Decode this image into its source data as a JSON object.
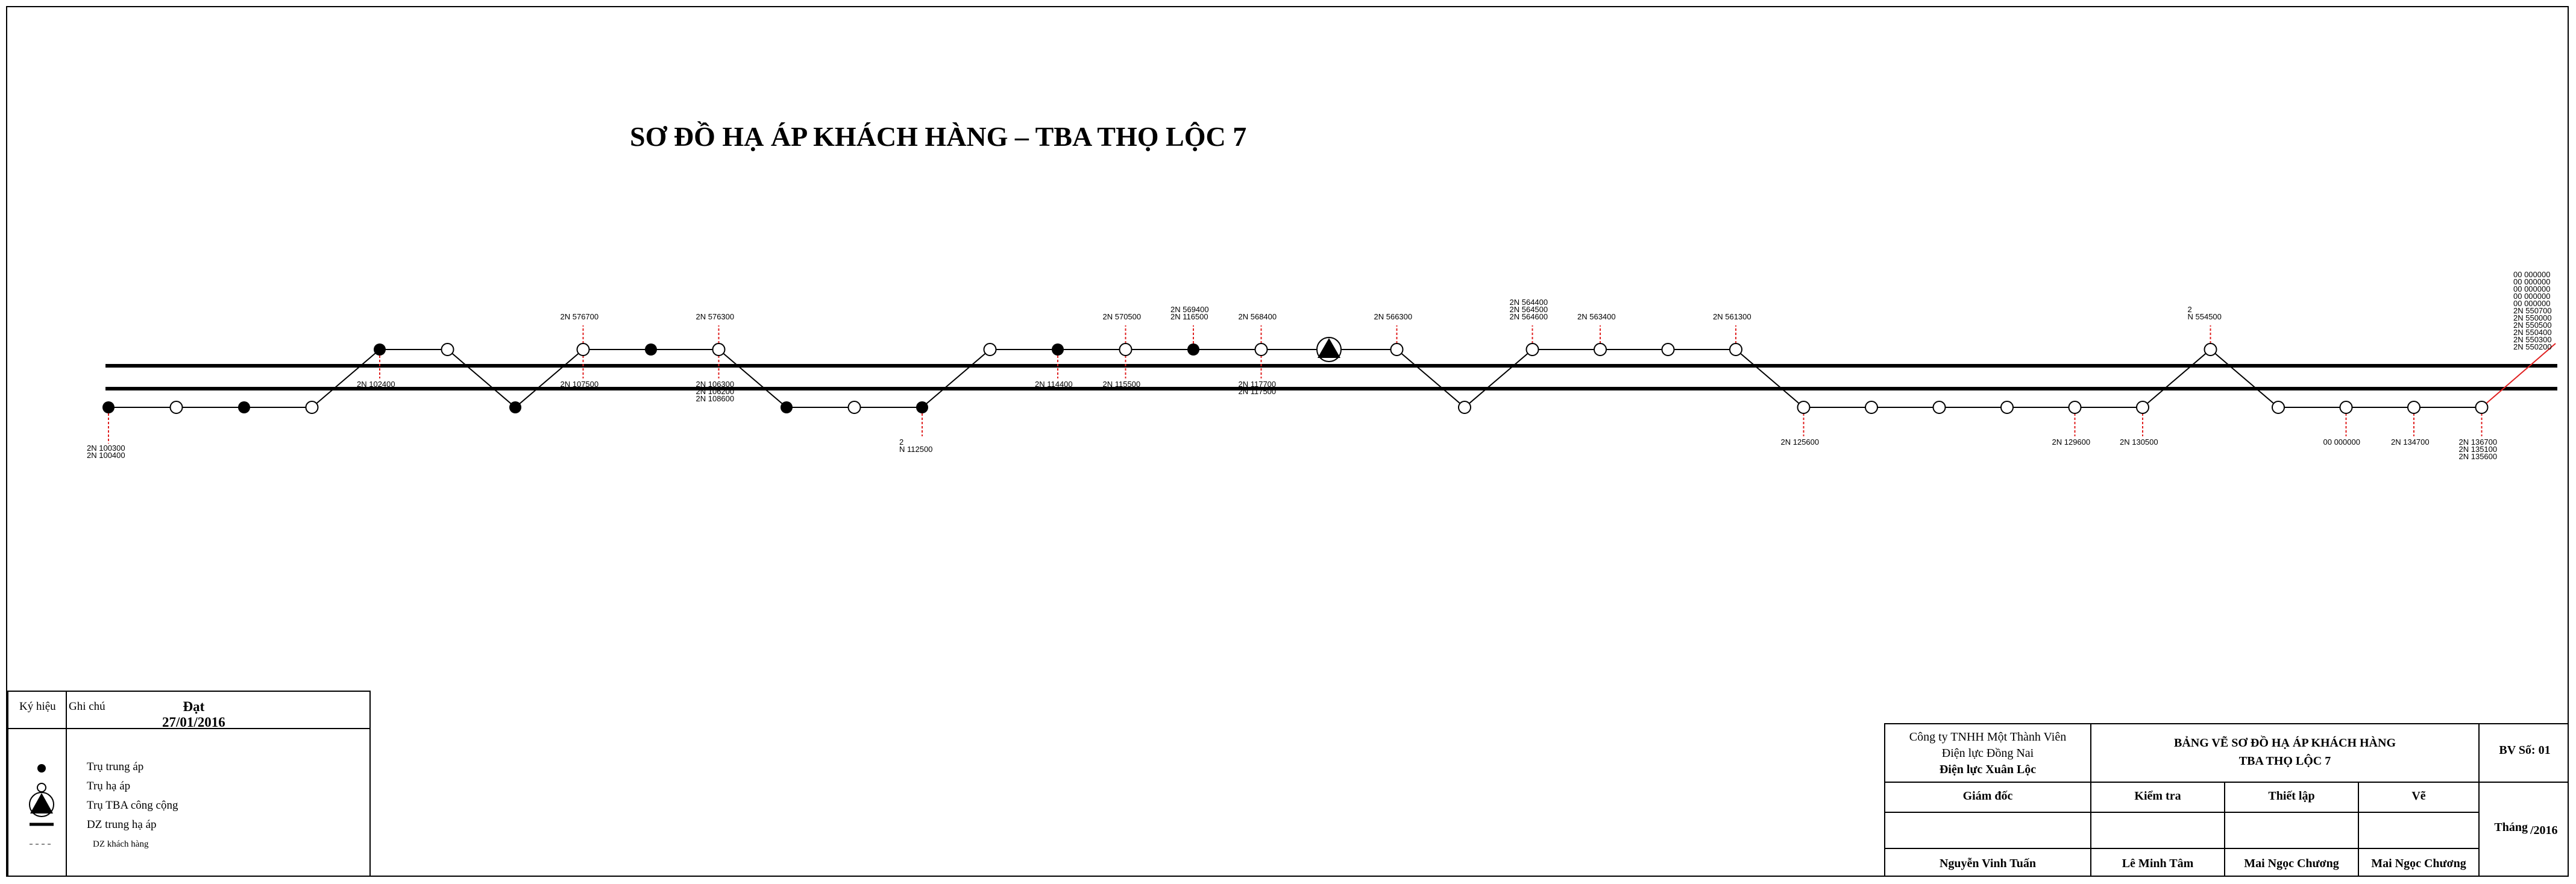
{
  "title": "SƠ ĐỒ HẠ ÁP KHÁCH HÀNG – TBA THỌ LỘC 7",
  "legend": {
    "col_symbol": "Ký hiệu",
    "col_note": "Ghi chú",
    "status": "Đạt",
    "date": "27/01/2016",
    "items": [
      {
        "icon": "filled-dot-icon",
        "text": "Trụ trung áp"
      },
      {
        "icon": "hollow-dot-icon",
        "text": "Trụ hạ áp"
      },
      {
        "icon": "substation-triangle-icon",
        "text": "Trụ TBA công cộng"
      },
      {
        "icon": "solid-line-icon",
        "text": "DZ trung hạ áp"
      },
      {
        "icon": "dashed-line-icon",
        "text": "DZ khách hàng"
      }
    ]
  },
  "title_block": {
    "company_line1": "Công ty TNHH Một Thành Viên",
    "company_line2": "Điện lực Đồng Nai",
    "company_line3": "Điện lực Xuân Lộc",
    "drawing_title1": "BẢNG VẼ SƠ ĐỒ HẠ ÁP KHÁCH HÀNG",
    "drawing_title2": "TBA THỌ LỘC 7",
    "sheet_no": "BV Số: 01",
    "role_director": "Giám đốc",
    "role_check": "Kiểm tra",
    "role_setup": "Thiết lập",
    "role_draw": "Vẽ",
    "month": "Tháng",
    "year": "/2016",
    "name_director": "Nguyễn Vinh Tuấn",
    "name_check": "Lê Minh Tâm",
    "name_setup": "Mai Ngọc Chương",
    "name_draw": "Mai Ngọc Chương"
  },
  "colors": {
    "line": "#000000",
    "customer_line": "#e02020"
  },
  "diagram": {
    "nodes": [
      {
        "t": "filled",
        "pos": "low"
      },
      {
        "t": "hollow",
        "pos": "low"
      },
      {
        "t": "filled",
        "pos": "low"
      },
      {
        "t": "hollow",
        "pos": "low"
      },
      {
        "t": "filled",
        "pos": "high",
        "down": [
          "2N  102400"
        ]
      },
      {
        "t": "hollow",
        "pos": "high"
      },
      {
        "t": "filled",
        "pos": "low"
      },
      {
        "t": "hollow",
        "pos": "high",
        "up": [
          "2N  576700"
        ],
        "down": [
          "2N  107500"
        ]
      },
      {
        "t": "filled",
        "pos": "high"
      },
      {
        "t": "hollow",
        "pos": "high",
        "up": [
          "2N  576300"
        ],
        "down": [
          "2N  106300",
          "2N  106200",
          "2N  108600"
        ]
      },
      {
        "t": "filled",
        "pos": "low"
      },
      {
        "t": "hollow",
        "pos": "low"
      },
      {
        "t": "filled",
        "pos": "low",
        "down": [
          "2",
          "N  112500"
        ]
      },
      {
        "t": "hollow",
        "pos": "high"
      },
      {
        "t": "filled",
        "pos": "high",
        "down": [
          "2N  114400"
        ]
      },
      {
        "t": "hollow",
        "pos": "high",
        "up": [
          "2N  570500"
        ],
        "down": [
          "2N  115500"
        ]
      },
      {
        "t": "filled",
        "pos": "high",
        "up": [
          "2N  569400",
          "2N  116500"
        ]
      },
      {
        "t": "hollow",
        "pos": "high",
        "up": [
          "2N  568400"
        ],
        "down": [
          "2N  117700",
          "2N  117500"
        ]
      },
      {
        "t": "tba",
        "pos": "high"
      },
      {
        "t": "hollow",
        "pos": "high",
        "up": [
          "2N  566300"
        ]
      },
      {
        "t": "hollow",
        "pos": "low"
      },
      {
        "t": "hollow",
        "pos": "high",
        "up": [
          "2N  564400",
          "2N  564500",
          "2N  564600"
        ]
      },
      {
        "t": "hollow",
        "pos": "high",
        "up": [
          "2N  563400"
        ]
      },
      {
        "t": "hollow",
        "pos": "high"
      },
      {
        "t": "hollow",
        "pos": "high",
        "up": [
          "2N  561300"
        ]
      },
      {
        "t": "hollow",
        "pos": "low",
        "down": [
          "2N  125600"
        ]
      },
      {
        "t": "hollow",
        "pos": "low"
      },
      {
        "t": "hollow",
        "pos": "low"
      },
      {
        "t": "hollow",
        "pos": "low"
      },
      {
        "t": "hollow",
        "pos": "low",
        "down": [
          "2N  129600"
        ]
      },
      {
        "t": "hollow",
        "pos": "low",
        "down": [
          "2N  130500"
        ]
      },
      {
        "t": "hollow",
        "pos": "high",
        "up": [
          "2",
          "N  554500"
        ]
      },
      {
        "t": "hollow",
        "pos": "low"
      },
      {
        "t": "hollow",
        "pos": "low",
        "down": [
          "00  000000"
        ]
      },
      {
        "t": "hollow",
        "pos": "low",
        "down": [
          "2N  134700"
        ]
      },
      {
        "t": "hollow",
        "pos": "low",
        "down": [
          "2N  136700",
          "2N  135100",
          "2N  135600"
        ]
      }
    ],
    "first_node_labels": [
      "2N  100300",
      "2N  100400"
    ],
    "end_labels": [
      "00  000000",
      "00  000000",
      "00  000000",
      "00  000000",
      "00  000000",
      "2N  550700",
      "2N  550000",
      "2N  550500",
      "2N  550400",
      "2N  550300",
      "2N  550200"
    ]
  }
}
